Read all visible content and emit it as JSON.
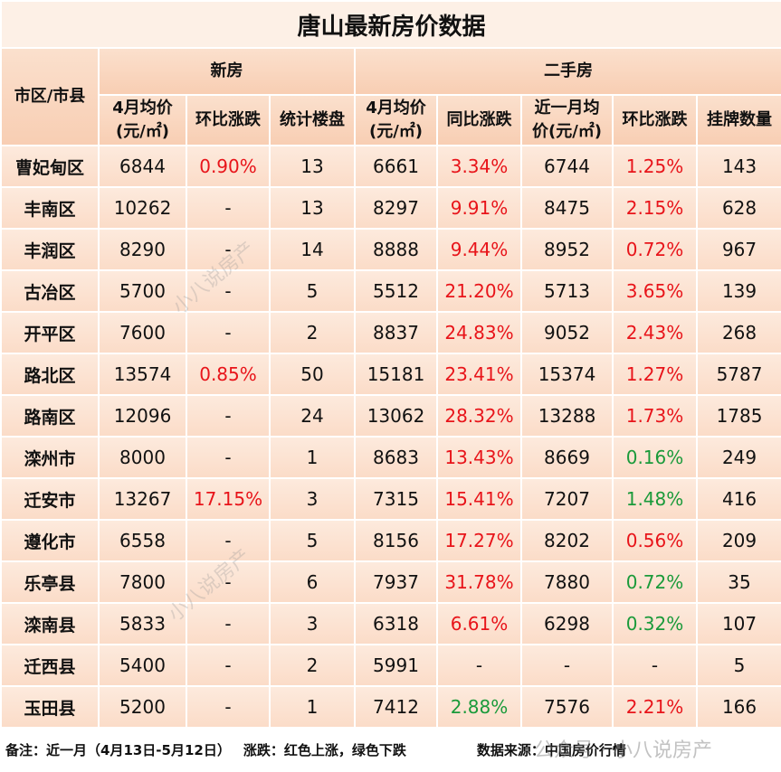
{
  "header": {
    "title": "唐山最新房价数据",
    "district": "市区/市县",
    "group_new": "新房",
    "group_second": "二手房",
    "columns": [
      "4月均价\n(元/㎡)",
      "环比涨跌",
      "统计楼盘",
      "4月均价\n(元/㎡)",
      "同比涨跌",
      "近一月均\n价(元/㎡)",
      "环比涨跌",
      "挂牌数量"
    ]
  },
  "table": {
    "rows": [
      {
        "name": "曹妃甸区",
        "cells": [
          6844,
          {
            "text": "0.90%",
            "color": "#e8141a"
          },
          13,
          6661,
          {
            "text": "3.34%",
            "color": "#e8141a"
          },
          6744,
          {
            "text": "1.25%",
            "color": "#e8141a"
          },
          143
        ]
      },
      {
        "name": "丰南区",
        "cells": [
          10262,
          "-",
          13,
          8297,
          {
            "text": "9.91%",
            "color": "#e8141a"
          },
          8475,
          {
            "text": "2.15%",
            "color": "#e8141a"
          },
          628
        ]
      },
      {
        "name": "丰润区",
        "cells": [
          8290,
          "-",
          14,
          8888,
          {
            "text": "9.44%",
            "color": "#e8141a"
          },
          8952,
          {
            "text": "0.72%",
            "color": "#e8141a"
          },
          967
        ]
      },
      {
        "name": "古冶区",
        "cells": [
          5700,
          "-",
          5,
          5512,
          {
            "text": "21.20%",
            "color": "#e8141a"
          },
          5713,
          {
            "text": "3.65%",
            "color": "#e8141a"
          },
          139
        ]
      },
      {
        "name": "开平区",
        "cells": [
          7600,
          "-",
          2,
          8837,
          {
            "text": "24.83%",
            "color": "#e8141a"
          },
          9052,
          {
            "text": "2.43%",
            "color": "#e8141a"
          },
          268
        ]
      },
      {
        "name": "路北区",
        "cells": [
          13574,
          {
            "text": "0.85%",
            "color": "#e8141a"
          },
          50,
          15181,
          {
            "text": "23.41%",
            "color": "#e8141a"
          },
          15374,
          {
            "text": "1.27%",
            "color": "#e8141a"
          },
          5787
        ]
      },
      {
        "name": "路南区",
        "cells": [
          12096,
          "-",
          24,
          13062,
          {
            "text": "28.32%",
            "color": "#e8141a"
          },
          13288,
          {
            "text": "1.73%",
            "color": "#e8141a"
          },
          1785
        ]
      },
      {
        "name": "滦州市",
        "cells": [
          8000,
          "-",
          1,
          8683,
          {
            "text": "13.43%",
            "color": "#e8141a"
          },
          8669,
          {
            "text": "0.16%",
            "color": "#1a9a3a"
          },
          249
        ]
      },
      {
        "name": "迁安市",
        "cells": [
          13267,
          {
            "text": "17.15%",
            "color": "#e8141a"
          },
          3,
          7315,
          {
            "text": "15.41%",
            "color": "#e8141a"
          },
          7207,
          {
            "text": "1.48%",
            "color": "#1a9a3a"
          },
          416
        ]
      },
      {
        "name": "遵化市",
        "cells": [
          6558,
          "-",
          5,
          8156,
          {
            "text": "17.27%",
            "color": "#e8141a"
          },
          8202,
          {
            "text": "0.56%",
            "color": "#e8141a"
          },
          209
        ]
      },
      {
        "name": "乐亭县",
        "cells": [
          7800,
          "-",
          6,
          7937,
          {
            "text": "31.78%",
            "color": "#e8141a"
          },
          7880,
          {
            "text": "0.72%",
            "color": "#1a9a3a"
          },
          35
        ]
      },
      {
        "name": "滦南县",
        "cells": [
          5833,
          "-",
          3,
          6318,
          {
            "text": "6.61%",
            "color": "#e8141a"
          },
          6298,
          {
            "text": "0.32%",
            "color": "#1a9a3a"
          },
          107
        ]
      },
      {
        "name": "迁西县",
        "cells": [
          5400,
          "-",
          2,
          5991,
          "-",
          "-",
          "-",
          5
        ]
      },
      {
        "name": "玉田县",
        "cells": [
          5200,
          "-",
          1,
          7412,
          {
            "text": "2.88%",
            "color": "#1a9a3a"
          },
          7576,
          {
            "text": "2.21%",
            "color": "#e8141a"
          },
          166
        ]
      }
    ]
  },
  "footer": {
    "note": "备注：近一月（4月13日-5月12日）",
    "legend": "涨跌：红色上涨，绿色下跌",
    "source": "数据来源：中国房价行情"
  },
  "watermarks": [
    "小八说房产",
    "小八说房产",
    "公众号 · 小八说房产"
  ]
}
